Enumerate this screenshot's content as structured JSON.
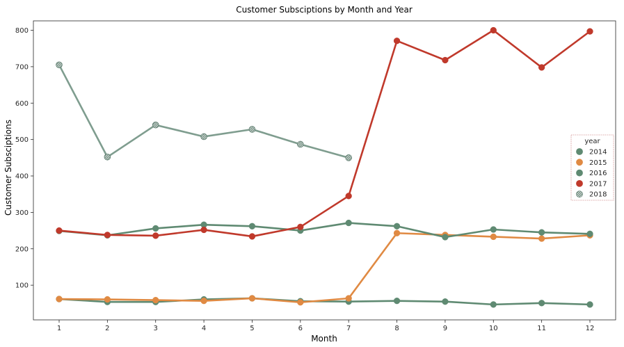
{
  "chart_data": {
    "type": "line",
    "title": "Customer Subsciptions by Month and Year",
    "xlabel": "Month",
    "ylabel": "Customer Subsciptions",
    "categories": [
      1,
      2,
      3,
      4,
      5,
      6,
      7,
      8,
      9,
      10,
      11,
      12
    ],
    "ylim": [
      0,
      850
    ],
    "yticks": [
      100,
      200,
      300,
      400,
      500,
      600,
      700,
      800
    ],
    "grid": false,
    "legend": {
      "title": "year",
      "placement": "right"
    },
    "series": [
      {
        "name": "2014",
        "color": "#5f8a72",
        "marker": "circle",
        "values": [
          62,
          54,
          54,
          61,
          64,
          56,
          55,
          57,
          55,
          47,
          51,
          47
        ]
      },
      {
        "name": "2015",
        "color": "#e08a43",
        "marker": "circle",
        "values": [
          62,
          61,
          59,
          57,
          64,
          53,
          64,
          243,
          238,
          233,
          228,
          237
        ]
      },
      {
        "name": "2016",
        "color": "#5f8a72",
        "marker": "circle",
        "values": [
          249,
          237,
          256,
          266,
          262,
          250,
          271,
          262,
          232,
          253,
          245,
          241
        ]
      },
      {
        "name": "2017",
        "color": "#c0392b",
        "marker": "circle",
        "values": [
          250,
          238,
          236,
          252,
          234,
          260,
          345,
          771,
          718,
          800,
          698,
          797
        ]
      },
      {
        "name": "2018",
        "color": "#7f9d8f",
        "marker": "circle-hatched",
        "values": [
          705,
          452,
          540,
          508,
          528,
          487,
          450,
          null,
          null,
          null,
          null,
          null
        ]
      }
    ]
  }
}
